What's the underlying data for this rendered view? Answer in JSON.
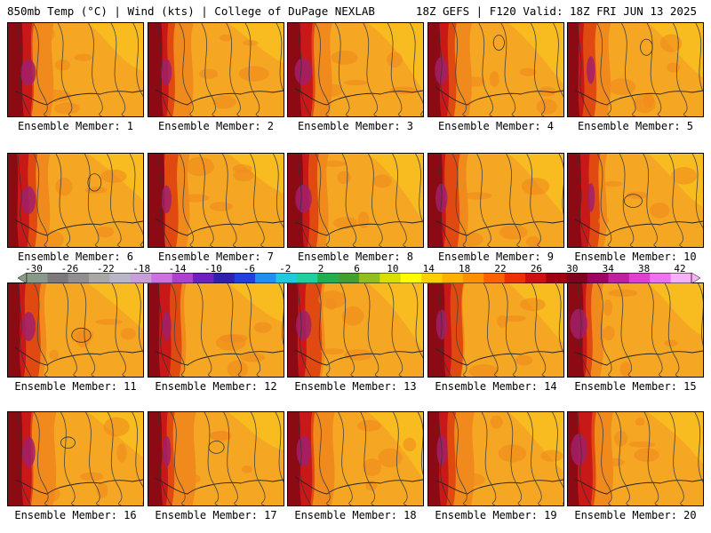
{
  "header": {
    "left": "850mb Temp (°C) | Wind (kts) | College of DuPage NEXLAB",
    "right": "18Z GEFS | F120 Valid: 18Z FRI JUN 13 2025"
  },
  "panels": [
    {
      "label": "Ensemble Member: 1"
    },
    {
      "label": "Ensemble Member: 2"
    },
    {
      "label": "Ensemble Member: 3"
    },
    {
      "label": "Ensemble Member: 4"
    },
    {
      "label": "Ensemble Member: 5"
    },
    {
      "label": "Ensemble Member: 6"
    },
    {
      "label": "Ensemble Member: 7"
    },
    {
      "label": "Ensemble Member: 8"
    },
    {
      "label": "Ensemble Member: 9"
    },
    {
      "label": "Ensemble Member: 10"
    },
    {
      "label": "Ensemble Member: 11"
    },
    {
      "label": "Ensemble Member: 12"
    },
    {
      "label": "Ensemble Member: 13"
    },
    {
      "label": "Ensemble Member: 14"
    },
    {
      "label": "Ensemble Member: 15"
    },
    {
      "label": "Ensemble Member: 16"
    },
    {
      "label": "Ensemble Member: 17"
    },
    {
      "label": "Ensemble Member: 18"
    },
    {
      "label": "Ensemble Member: 19"
    },
    {
      "label": "Ensemble Member: 20"
    }
  ],
  "colorbar": {
    "ticks": [
      "-30",
      "-26",
      "-22",
      "-18",
      "-14",
      "-10",
      "-6",
      "-2",
      "2",
      "6",
      "10",
      "14",
      "18",
      "22",
      "26",
      "30",
      "34",
      "38",
      "42"
    ],
    "colors": [
      "#8a9a8a",
      "#7a7a7a",
      "#8f8f8f",
      "#a8a8a8",
      "#b7b7c7",
      "#c8a0d8",
      "#d070e0",
      "#b040d0",
      "#7020c0",
      "#3020b0",
      "#2040e0",
      "#2090f0",
      "#20c8e0",
      "#20d0a0",
      "#20b050",
      "#40a030",
      "#90c020",
      "#d8e000",
      "#ffff00",
      "#ffd000",
      "#ffb000",
      "#ff9000",
      "#ff6000",
      "#f03000",
      "#d01010",
      "#a00010",
      "#800020",
      "#a00060",
      "#c020a0",
      "#e040d0",
      "#f070f0",
      "#f8b0f8"
    ]
  },
  "map_colors": {
    "base": "#f5a623",
    "light": "#f8c020",
    "warm": "#f08a1c",
    "hot": "#e04a10",
    "red": "#c81818",
    "dark": "#8c0a14",
    "magenta": "#a0206a"
  }
}
